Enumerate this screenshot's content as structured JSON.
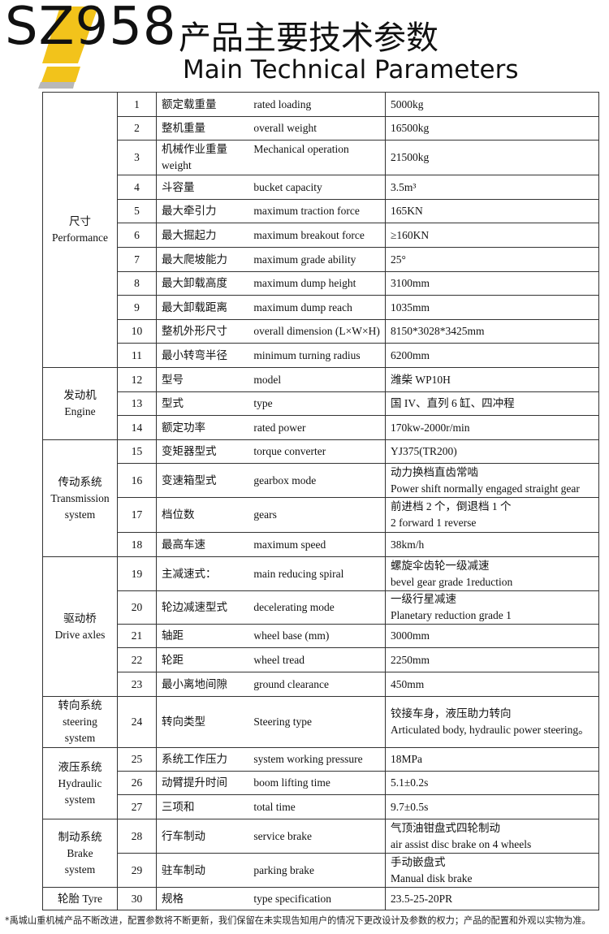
{
  "header": {
    "model": "SZ958",
    "title_cn": "产品主要技术参数",
    "title_en": "Main Technical Parameters",
    "accent_color": "#f2c31b",
    "shadow_color": "#b8b8b8"
  },
  "groups": [
    {
      "label": "尺寸\nPerformance",
      "rows": [
        {
          "no": "1",
          "cn": "额定载重量",
          "en": "rated loading",
          "value": "5000kg",
          "h": 30
        },
        {
          "no": "2",
          "cn": "整机重量",
          "en": "overall weight",
          "value": "16500kg",
          "h": 29
        },
        {
          "no": "3",
          "cn": "机械作业重量",
          "en": "Mechanical operation weight",
          "value": "21500kg",
          "h": 43
        },
        {
          "no": "4",
          "cn": "斗容量",
          "en": "bucket capacity",
          "value": "3.5m³",
          "h": 30
        },
        {
          "no": "5",
          "cn": "最大牵引力",
          "en": "maximum traction force",
          "value": "165KN",
          "h": 29
        },
        {
          "no": "6",
          "cn": "最大掘起力",
          "en": "maximum breakout force",
          "value": "≥160KN",
          "h": 30
        },
        {
          "no": "7",
          "cn": "最大爬坡能力",
          "en": "maximum grade ability",
          "value": "25°",
          "h": 30
        },
        {
          "no": "8",
          "cn": "最大卸载高度",
          "en": "maximum dump height",
          "value": "3100mm",
          "h": 29
        },
        {
          "no": "9",
          "cn": "最大卸载距离",
          "en": "maximum dump reach",
          "value": "1035mm",
          "h": 30
        },
        {
          "no": "10",
          "cn": "整机外形尺寸",
          "en": "overall dimension (L×W×H)",
          "value": "8150*3028*3425mm",
          "h": 29
        },
        {
          "no": "11",
          "cn": "最小转弯半径",
          "en": "minimum turning radius",
          "value": "6200mm",
          "h": 30
        }
      ]
    },
    {
      "label": "发动机\nEngine",
      "rows": [
        {
          "no": "12",
          "cn": "型号",
          "en": "model",
          "value": "潍柴 WP10H",
          "h": 30
        },
        {
          "no": "13",
          "cn": "型式",
          "en": "type",
          "value": "国 IV、直列 6 缸、四冲程",
          "h": 29
        },
        {
          "no": "14",
          "cn": "额定功率",
          "en": "rated power",
          "value": "170kw-2000r/min",
          "h": 30
        }
      ]
    },
    {
      "label": "传动系统\nTransmission\nsystem",
      "rows": [
        {
          "no": "15",
          "cn": "变矩器型式",
          "en": "torque converter",
          "value": "YJ375(TR200)",
          "h": 29
        },
        {
          "no": "16",
          "cn": "变速箱型式",
          "en": "gearbox mode",
          "value": "动力换档直齿常啮\nPower shift normally engaged straight gear",
          "h": 42
        },
        {
          "no": "17",
          "cn": "档位数",
          "en": "gears",
          "value": "前进档 2 个，倒退档 1 个\n2 forward   1 reverse",
          "h": 43
        },
        {
          "no": "18",
          "cn": "最高车速",
          "en": "maximum speed",
          "value": "38km/h",
          "h": 30
        }
      ]
    },
    {
      "label": "驱动桥\nDrive axles",
      "rows": [
        {
          "no": "19",
          "cn": "主减速式：",
          "en": "main reducing spiral",
          "value": "螺旋伞齿轮一级减速\nbevel gear grade 1reduction",
          "h": 42
        },
        {
          "no": "20",
          "cn": "轮边减速型式",
          "en": "decelerating mode",
          "value": "一级行星减速\nPlanetary reduction grade 1",
          "h": 41
        },
        {
          "no": "21",
          "cn": "轴距",
          "en": "wheel base (mm)",
          "value": "3000mm",
          "h": 29
        },
        {
          "no": "22",
          "cn": "轮距",
          "en": "wheel tread",
          "value": "2250mm",
          "h": 30
        },
        {
          "no": "23",
          "cn": "最小离地间隙",
          "en": "ground clearance",
          "value": "450mm",
          "h": 30
        }
      ]
    },
    {
      "label": "转向系统\nsteering\nsystem",
      "rows": [
        {
          "no": "24",
          "cn": "转向类型",
          "en": "Steering type",
          "value": "铰接车身，液压助力转向\nArticulated body, hydraulic power steering。",
          "h": 63
        }
      ]
    },
    {
      "label": "液压系统\nHydraulic\nsystem",
      "rows": [
        {
          "no": "25",
          "cn": "系统工作压力",
          "en": "system working pressure",
          "value": "18MPa",
          "h": 29
        },
        {
          "no": "26",
          "cn": "动臂提升时间",
          "en": "boom lifting time",
          "value": "5.1±0.2s",
          "h": 29
        },
        {
          "no": "27",
          "cn": "三项和",
          "en": "total time",
          "value": "9.7±0.5s",
          "h": 30
        }
      ]
    },
    {
      "label": "制动系统\nBrake\nsystem",
      "rows": [
        {
          "no": "28",
          "cn": "行车制动",
          "en": "service brake",
          "value": "气顶油钳盘式四轮制动\nair assist disc brake on 4 wheels",
          "h": 42
        },
        {
          "no": "29",
          "cn": "驻车制动",
          "en": "parking brake",
          "value": "手动嵌盘式\nManual disk brake",
          "h": 42
        }
      ]
    },
    {
      "label": "轮胎 Tyre",
      "rows": [
        {
          "no": "30",
          "cn": "规格",
          "en": "type specification",
          "value": "23.5-25-20PR",
          "h": 28
        }
      ]
    }
  ],
  "footer": "*禹城山重机械产品不断改进，配置参数将不断更新，我们保留在未实现告知用户的情况下更改设计及参数的权力；产品的配置和外观以实物为准。"
}
